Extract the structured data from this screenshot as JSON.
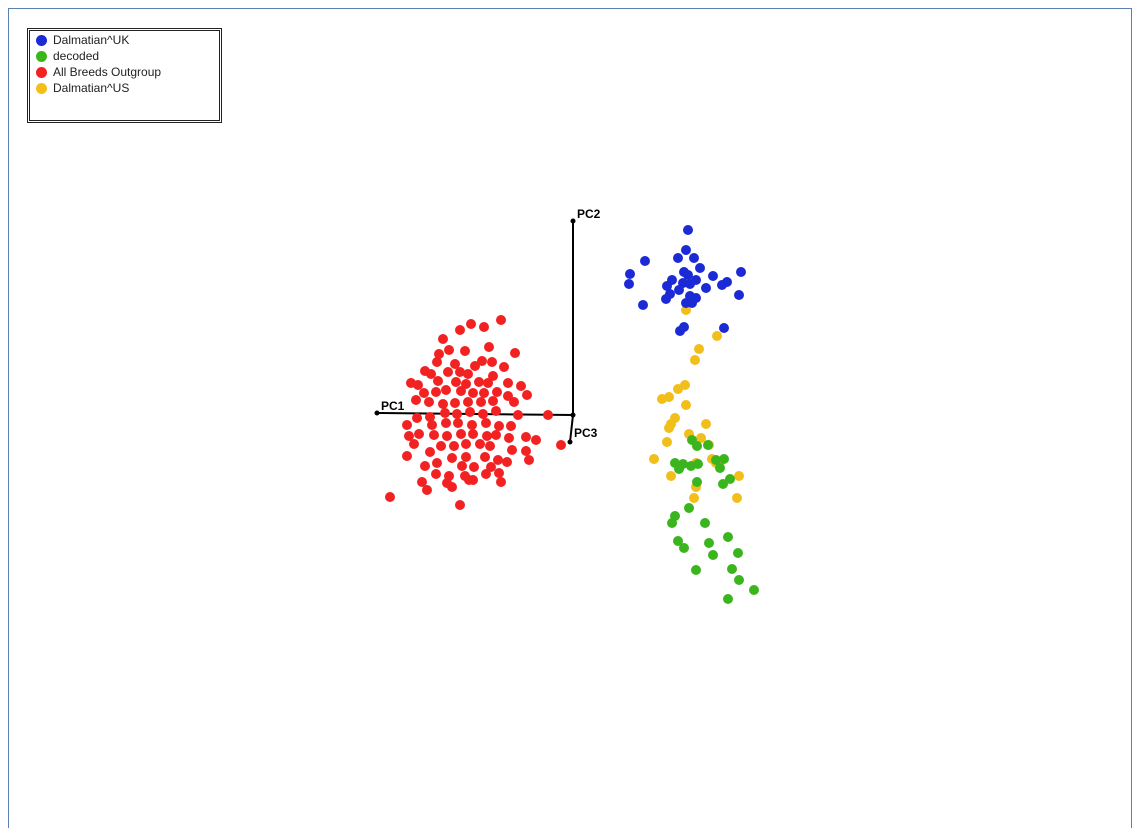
{
  "chart_data": {
    "type": "scatter",
    "projection": "3d",
    "axes": [
      "PC1",
      "PC2",
      "PC3"
    ],
    "legend_position": "top-left",
    "grid": false,
    "series": [
      {
        "name": "Dalmatian^UK",
        "color": "#1c2ad6",
        "points": [
          [
            688,
            230
          ],
          [
            686,
            250
          ],
          [
            678,
            258
          ],
          [
            694,
            258
          ],
          [
            645,
            261
          ],
          [
            630,
            274
          ],
          [
            684,
            272
          ],
          [
            688,
            275
          ],
          [
            700,
            268
          ],
          [
            741,
            272
          ],
          [
            672,
            280
          ],
          [
            683,
            283
          ],
          [
            690,
            284
          ],
          [
            696,
            280
          ],
          [
            713,
            276
          ],
          [
            629,
            284
          ],
          [
            667,
            286
          ],
          [
            679,
            290
          ],
          [
            706,
            288
          ],
          [
            722,
            285
          ],
          [
            727,
            282
          ],
          [
            670,
            294
          ],
          [
            666,
            299
          ],
          [
            690,
            296
          ],
          [
            696,
            298
          ],
          [
            739,
            295
          ],
          [
            643,
            305
          ],
          [
            686,
            303
          ],
          [
            692,
            303
          ],
          [
            684,
            327
          ],
          [
            680,
            331
          ],
          [
            724,
            328
          ]
        ]
      },
      {
        "name": "decoded",
        "color": "#3ab51e",
        "points": [
          [
            692,
            440
          ],
          [
            697,
            446
          ],
          [
            708,
            445
          ],
          [
            675,
            463
          ],
          [
            683,
            464
          ],
          [
            679,
            469
          ],
          [
            691,
            466
          ],
          [
            698,
            464
          ],
          [
            716,
            460
          ],
          [
            724,
            459
          ],
          [
            720,
            468
          ],
          [
            730,
            479
          ],
          [
            723,
            484
          ],
          [
            697,
            482
          ],
          [
            689,
            508
          ],
          [
            675,
            516
          ],
          [
            672,
            523
          ],
          [
            705,
            523
          ],
          [
            728,
            537
          ],
          [
            678,
            541
          ],
          [
            684,
            548
          ],
          [
            709,
            543
          ],
          [
            713,
            555
          ],
          [
            738,
            553
          ],
          [
            696,
            570
          ],
          [
            732,
            569
          ],
          [
            739,
            580
          ],
          [
            754,
            590
          ],
          [
            728,
            599
          ]
        ]
      },
      {
        "name": "All Breeds Outgroup",
        "color": "#f22222",
        "points": [
          [
            501,
            320
          ],
          [
            471,
            324
          ],
          [
            484,
            327
          ],
          [
            460,
            330
          ],
          [
            443,
            339
          ],
          [
            449,
            350
          ],
          [
            465,
            351
          ],
          [
            489,
            347
          ],
          [
            515,
            353
          ],
          [
            439,
            354
          ],
          [
            437,
            362
          ],
          [
            455,
            364
          ],
          [
            475,
            366
          ],
          [
            482,
            361
          ],
          [
            492,
            362
          ],
          [
            504,
            367
          ],
          [
            425,
            371
          ],
          [
            431,
            374
          ],
          [
            448,
            372
          ],
          [
            460,
            372
          ],
          [
            468,
            374
          ],
          [
            493,
            376
          ],
          [
            418,
            385
          ],
          [
            411,
            383
          ],
          [
            438,
            381
          ],
          [
            456,
            382
          ],
          [
            466,
            384
          ],
          [
            479,
            382
          ],
          [
            488,
            383
          ],
          [
            508,
            383
          ],
          [
            521,
            386
          ],
          [
            424,
            393
          ],
          [
            436,
            392
          ],
          [
            446,
            390
          ],
          [
            461,
            391
          ],
          [
            473,
            393
          ],
          [
            484,
            393
          ],
          [
            497,
            392
          ],
          [
            508,
            396
          ],
          [
            527,
            395
          ],
          [
            416,
            400
          ],
          [
            429,
            402
          ],
          [
            443,
            404
          ],
          [
            455,
            403
          ],
          [
            468,
            402
          ],
          [
            481,
            402
          ],
          [
            493,
            401
          ],
          [
            514,
            402
          ],
          [
            445,
            413
          ],
          [
            457,
            414
          ],
          [
            470,
            412
          ],
          [
            483,
            414
          ],
          [
            496,
            411
          ],
          [
            518,
            415
          ],
          [
            430,
            417
          ],
          [
            417,
            418
          ],
          [
            407,
            425
          ],
          [
            432,
            425
          ],
          [
            446,
            423
          ],
          [
            458,
            423
          ],
          [
            472,
            425
          ],
          [
            486,
            423
          ],
          [
            499,
            426
          ],
          [
            511,
            426
          ],
          [
            409,
            436
          ],
          [
            419,
            434
          ],
          [
            434,
            435
          ],
          [
            447,
            436
          ],
          [
            461,
            434
          ],
          [
            473,
            434
          ],
          [
            487,
            436
          ],
          [
            496,
            435
          ],
          [
            509,
            438
          ],
          [
            526,
            437
          ],
          [
            536,
            440
          ],
          [
            414,
            444
          ],
          [
            441,
            446
          ],
          [
            454,
            446
          ],
          [
            466,
            444
          ],
          [
            480,
            444
          ],
          [
            490,
            446
          ],
          [
            512,
            450
          ],
          [
            526,
            451
          ],
          [
            430,
            452
          ],
          [
            407,
            456
          ],
          [
            437,
            463
          ],
          [
            452,
            458
          ],
          [
            466,
            457
          ],
          [
            485,
            457
          ],
          [
            498,
            460
          ],
          [
            529,
            460
          ],
          [
            425,
            466
          ],
          [
            462,
            466
          ],
          [
            474,
            467
          ],
          [
            491,
            467
          ],
          [
            507,
            462
          ],
          [
            436,
            474
          ],
          [
            449,
            476
          ],
          [
            465,
            476
          ],
          [
            473,
            480
          ],
          [
            486,
            474
          ],
          [
            499,
            473
          ],
          [
            422,
            482
          ],
          [
            447,
            483
          ],
          [
            469,
            480
          ],
          [
            501,
            482
          ],
          [
            427,
            490
          ],
          [
            452,
            487
          ],
          [
            390,
            497
          ],
          [
            460,
            505
          ],
          [
            548,
            415
          ],
          [
            561,
            445
          ]
        ]
      },
      {
        "name": "Dalmatian^US",
        "color": "#f2be1a",
        "points": [
          [
            686,
            310
          ],
          [
            717,
            336
          ],
          [
            699,
            349
          ],
          [
            695,
            360
          ],
          [
            685,
            385
          ],
          [
            678,
            389
          ],
          [
            669,
            397
          ],
          [
            662,
            399
          ],
          [
            686,
            405
          ],
          [
            675,
            418
          ],
          [
            671,
            424
          ],
          [
            669,
            428
          ],
          [
            706,
            424
          ],
          [
            689,
            434
          ],
          [
            701,
            438
          ],
          [
            709,
            445
          ],
          [
            667,
            442
          ],
          [
            712,
            459
          ],
          [
            716,
            463
          ],
          [
            654,
            459
          ],
          [
            696,
            463
          ],
          [
            720,
            462
          ],
          [
            739,
            476
          ],
          [
            671,
            476
          ],
          [
            696,
            487
          ],
          [
            694,
            498
          ],
          [
            737,
            498
          ]
        ]
      }
    ]
  },
  "legend": {
    "items": [
      {
        "label": "Dalmatian^UK",
        "color": "#1c2ad6"
      },
      {
        "label": "decoded",
        "color": "#3ab51e"
      },
      {
        "label": "All Breeds Outgroup",
        "color": "#f22222"
      },
      {
        "label": "Dalmatian^US",
        "color": "#f2be1a"
      }
    ]
  }
}
